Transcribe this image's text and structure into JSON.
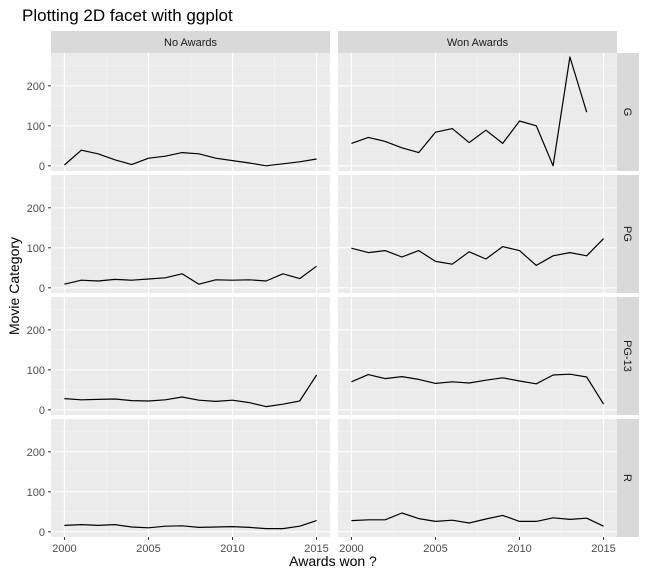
{
  "chart_data": {
    "type": "line",
    "title": "Plotting 2D facet with ggplot",
    "xlabel": "Awards won ?",
    "ylabel": "Movie Category",
    "xlim": [
      1999.2,
      2015.8
    ],
    "ylim": [
      -13,
      282
    ],
    "x_ticks": [
      2000,
      2005,
      2010,
      2015
    ],
    "y_ticks": [
      0,
      100,
      200
    ],
    "grid": true,
    "col_facets": [
      "No Awards",
      "Won Awards"
    ],
    "row_facets": [
      "G",
      "PG",
      "PG-13",
      "R"
    ],
    "panels": [
      {
        "row": "G",
        "col": "No Awards",
        "x": [
          2000,
          2001,
          2002,
          2003,
          2004,
          2005,
          2006,
          2007,
          2008,
          2009,
          2010,
          2011,
          2012,
          2013,
          2014,
          2015
        ],
        "y": [
          2,
          39,
          30,
          15,
          3,
          19,
          24,
          33,
          30,
          19,
          13,
          7,
          0,
          5,
          10,
          17
        ]
      },
      {
        "row": "G",
        "col": "Won Awards",
        "x": [
          2000,
          2001,
          2002,
          2003,
          2004,
          2005,
          2006,
          2007,
          2008,
          2009,
          2010,
          2011,
          2012,
          2013,
          2014
        ],
        "y": [
          56,
          71,
          61,
          45,
          33,
          84,
          93,
          58,
          89,
          56,
          112,
          100,
          0,
          272,
          134
        ]
      },
      {
        "row": "PG",
        "col": "No Awards",
        "x": [
          2000,
          2001,
          2002,
          2003,
          2004,
          2005,
          2006,
          2007,
          2008,
          2009,
          2010,
          2011,
          2012,
          2013,
          2014,
          2015
        ],
        "y": [
          9,
          19,
          17,
          21,
          19,
          22,
          25,
          35,
          9,
          20,
          19,
          20,
          17,
          35,
          23,
          54
        ]
      },
      {
        "row": "PG",
        "col": "Won Awards",
        "x": [
          2000,
          2001,
          2002,
          2003,
          2004,
          2005,
          2006,
          2007,
          2008,
          2009,
          2010,
          2011,
          2012,
          2013,
          2014,
          2015
        ],
        "y": [
          99,
          88,
          93,
          77,
          93,
          66,
          59,
          90,
          72,
          103,
          93,
          56,
          80,
          88,
          80,
          123
        ]
      },
      {
        "row": "PG-13",
        "col": "No Awards",
        "x": [
          2000,
          2001,
          2002,
          2003,
          2004,
          2005,
          2006,
          2007,
          2008,
          2009,
          2010,
          2011,
          2012,
          2013,
          2014,
          2015
        ],
        "y": [
          28,
          25,
          26,
          27,
          23,
          22,
          25,
          32,
          24,
          21,
          24,
          18,
          8,
          14,
          22,
          87
        ]
      },
      {
        "row": "PG-13",
        "col": "Won Awards",
        "x": [
          2000,
          2001,
          2002,
          2003,
          2004,
          2005,
          2006,
          2007,
          2008,
          2009,
          2010,
          2011,
          2012,
          2013,
          2014,
          2015
        ],
        "y": [
          70,
          88,
          78,
          83,
          76,
          66,
          70,
          67,
          74,
          80,
          72,
          65,
          87,
          89,
          82,
          14
        ]
      },
      {
        "row": "R",
        "col": "No Awards",
        "x": [
          2000,
          2001,
          2002,
          2003,
          2004,
          2005,
          2006,
          2007,
          2008,
          2009,
          2010,
          2011,
          2012,
          2013,
          2014,
          2015
        ],
        "y": [
          16,
          18,
          16,
          18,
          12,
          10,
          14,
          15,
          11,
          12,
          13,
          11,
          8,
          8,
          14,
          28
        ]
      },
      {
        "row": "R",
        "col": "Won Awards",
        "x": [
          2000,
          2001,
          2002,
          2003,
          2004,
          2005,
          2006,
          2007,
          2008,
          2009,
          2010,
          2011,
          2012,
          2013,
          2014,
          2015
        ],
        "y": [
          28,
          30,
          30,
          47,
          33,
          26,
          29,
          22,
          32,
          41,
          26,
          26,
          35,
          31,
          34,
          14
        ]
      }
    ]
  }
}
